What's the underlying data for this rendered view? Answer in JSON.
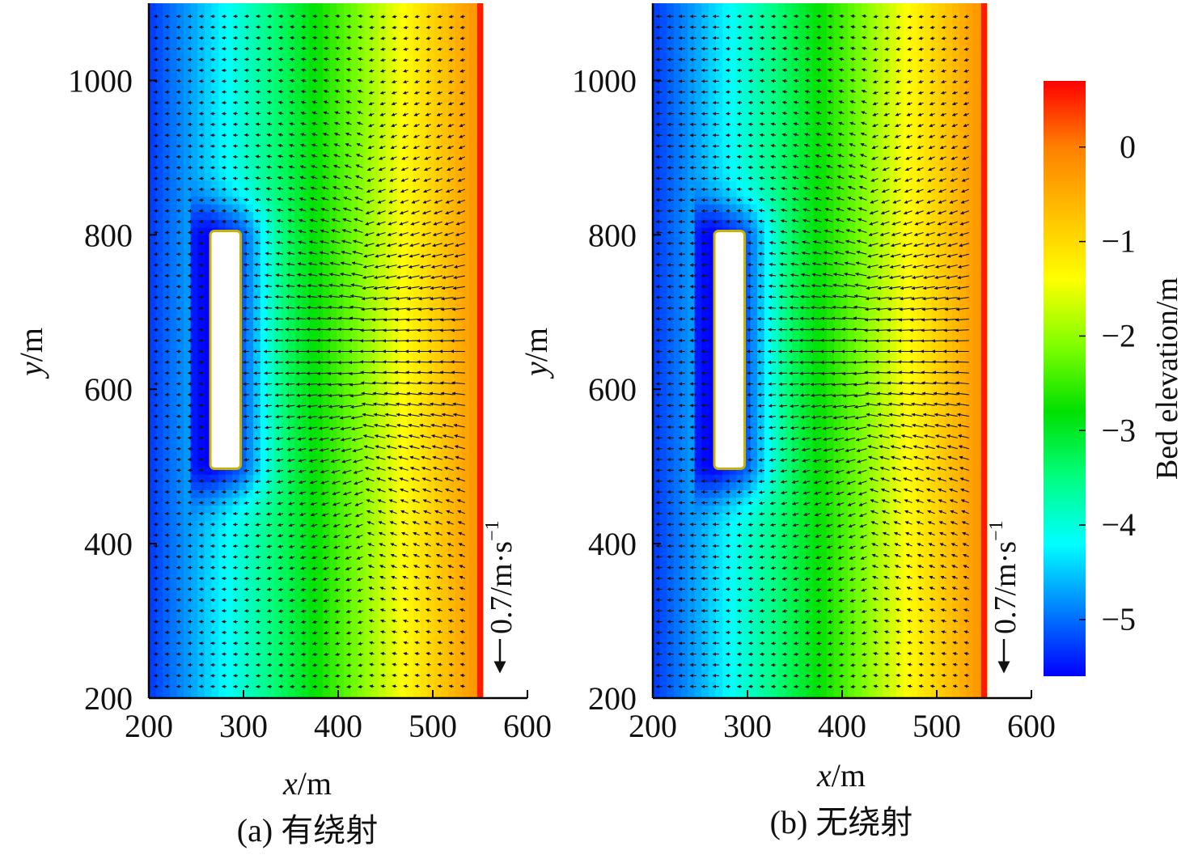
{
  "chart_data": [
    {
      "type": "heatmap",
      "panel_caption": "(a) 有绕射",
      "xlabel_var": "x",
      "xlabel_unit": "/m",
      "ylabel_var": "y",
      "ylabel_unit": "/m",
      "xlim": [
        200,
        600
      ],
      "ylim": [
        200,
        1100
      ],
      "xticks": [
        200,
        300,
        400,
        500,
        600
      ],
      "yticks": [
        200,
        400,
        600,
        800,
        1000
      ],
      "field": "Bed elevation",
      "shoreline_x": 553,
      "breakwater": {
        "x": [
          265,
          297
        ],
        "y": [
          497,
          805
        ]
      },
      "vector_scale_label": "0.7/m·s",
      "vector_scale_exponent": "−1",
      "diffraction": true
    },
    {
      "type": "heatmap",
      "panel_caption": "(b) 无绕射",
      "xlabel_var": "x",
      "xlabel_unit": "/m",
      "ylabel_var": "y",
      "ylabel_unit": "/m",
      "xlim": [
        200,
        600
      ],
      "ylim": [
        200,
        1100
      ],
      "xticks": [
        200,
        300,
        400,
        500,
        600
      ],
      "yticks": [
        200,
        400,
        600,
        800,
        1000
      ],
      "field": "Bed elevation",
      "shoreline_x": 553,
      "breakwater": {
        "x": [
          265,
          297
        ],
        "y": [
          497,
          805
        ]
      },
      "vector_scale_label": "0.7/m·s",
      "vector_scale_exponent": "−1",
      "diffraction": false
    }
  ],
  "colorbar": {
    "label": "Bed elevation/m",
    "ticks": [
      0,
      -1,
      -2,
      -3,
      -4,
      -5
    ],
    "tick_labels": [
      "0",
      "−1",
      "−2",
      "−3",
      "−4",
      "−5"
    ],
    "range": [
      -5.6,
      0.7
    ],
    "colors": [
      "#0000ff",
      "#0080ff",
      "#00ffff",
      "#00ff80",
      "#00e000",
      "#80ff00",
      "#ffff00",
      "#ffc000",
      "#ff8000",
      "#ff0000"
    ]
  }
}
